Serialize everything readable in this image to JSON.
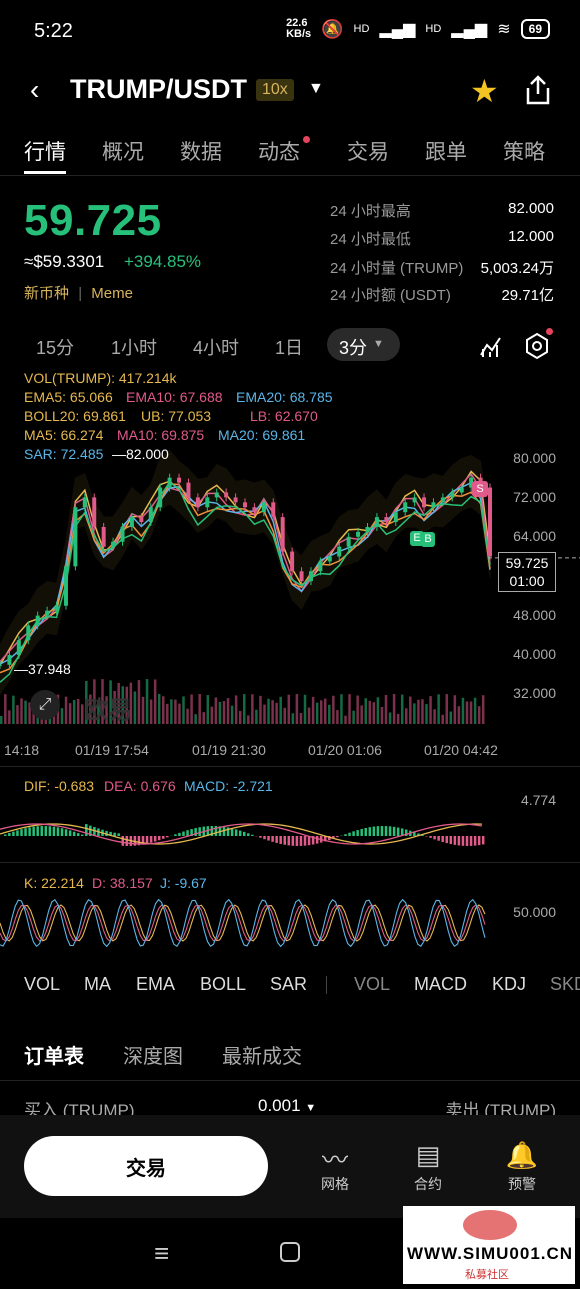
{
  "status": {
    "time": "5:22",
    "speed": "22.6\nKB/s",
    "net1": "HD",
    "net2": "HD",
    "battery": "69"
  },
  "header": {
    "pair": "TRUMP/USDT",
    "leverage": "10x"
  },
  "tabs": [
    "行情",
    "概况",
    "数据",
    "动态",
    "交易",
    "跟单",
    "策略"
  ],
  "ticker": {
    "price": "59.725",
    "fiat": "≈$59.3301",
    "change": "+394.85%",
    "tag1": "新币种",
    "tag_sep": "|",
    "tag2": "Meme",
    "stats": [
      {
        "label": "24 小时最高",
        "value": "82.000"
      },
      {
        "label": "24 小时最低",
        "value": "12.000"
      },
      {
        "label": "24 小时量 (TRUMP)",
        "value": "5,003.24万"
      },
      {
        "label": "24 小时额 (USDT)",
        "value": "29.71亿"
      }
    ]
  },
  "timeframes": [
    "15分",
    "1小时",
    "4小时",
    "1日",
    "3分"
  ],
  "indicators": {
    "vol": "VOL(TRUMP): 417.214k",
    "ema5": "EMA5: 65.066",
    "ema10": "EMA10: 67.688",
    "ema20": "EMA20: 68.785",
    "boll": "BOLL20: 69.861",
    "ub": "UB: 77.053",
    "lb": "LB: 62.670",
    "ma5": "MA5: 66.274",
    "ma10": "MA10: 69.875",
    "ma20": "MA20: 69.861",
    "sar": "SAR: 72.485",
    "high_mark": "82.000",
    "low_mark": "37.948"
  },
  "chart_data": {
    "type": "line",
    "y_ticks": [
      "80.000",
      "72.000",
      "64.000",
      "48.000",
      "40.000",
      "32.000"
    ],
    "x_ticks": [
      "14:18",
      "01/19 17:54",
      "01/19 21:30",
      "01/20 01:06",
      "01/20 04:42"
    ],
    "current_price": "59.725",
    "countdown": "01:00",
    "markers": [
      "S",
      "E",
      "B"
    ],
    "watermark": "欧易",
    "close": [
      38,
      40,
      43,
      46,
      48,
      49,
      50,
      58,
      70,
      72,
      66,
      62,
      63,
      66,
      68,
      67,
      70,
      74,
      76,
      75,
      72,
      70,
      72,
      73,
      72,
      71,
      70,
      69,
      71,
      68,
      61,
      57,
      55,
      57,
      59,
      60,
      62,
      64,
      65,
      66,
      68,
      67,
      69,
      71,
      72,
      70,
      71,
      72,
      73,
      74,
      76,
      74,
      60
    ]
  },
  "macd": {
    "dif": "DIF: -0.683",
    "dea": "DEA: 0.676",
    "macd": "MACD: -2.721",
    "tick": "4.774"
  },
  "kdj": {
    "k": "K: 22.214",
    "d": "D: 38.157",
    "j": "J: -9.67",
    "tick": "50.000"
  },
  "ind_tabs": [
    "VOL",
    "MA",
    "EMA",
    "BOLL",
    "SAR",
    "VOL",
    "MACD",
    "KDJ",
    "SKD"
  ],
  "book": {
    "tabs": [
      "订单表",
      "深度图",
      "最新成交"
    ],
    "buy": "买入 (TRUMP)",
    "step": "0.001",
    "sell": "卖出 (TRUMP)"
  },
  "bottom": {
    "trade": "交易",
    "grid": "网格",
    "contract": "合约",
    "alert": "预警"
  },
  "watermark": {
    "url": "WWW.SIMU001.CN",
    "sub": "私募社区"
  }
}
